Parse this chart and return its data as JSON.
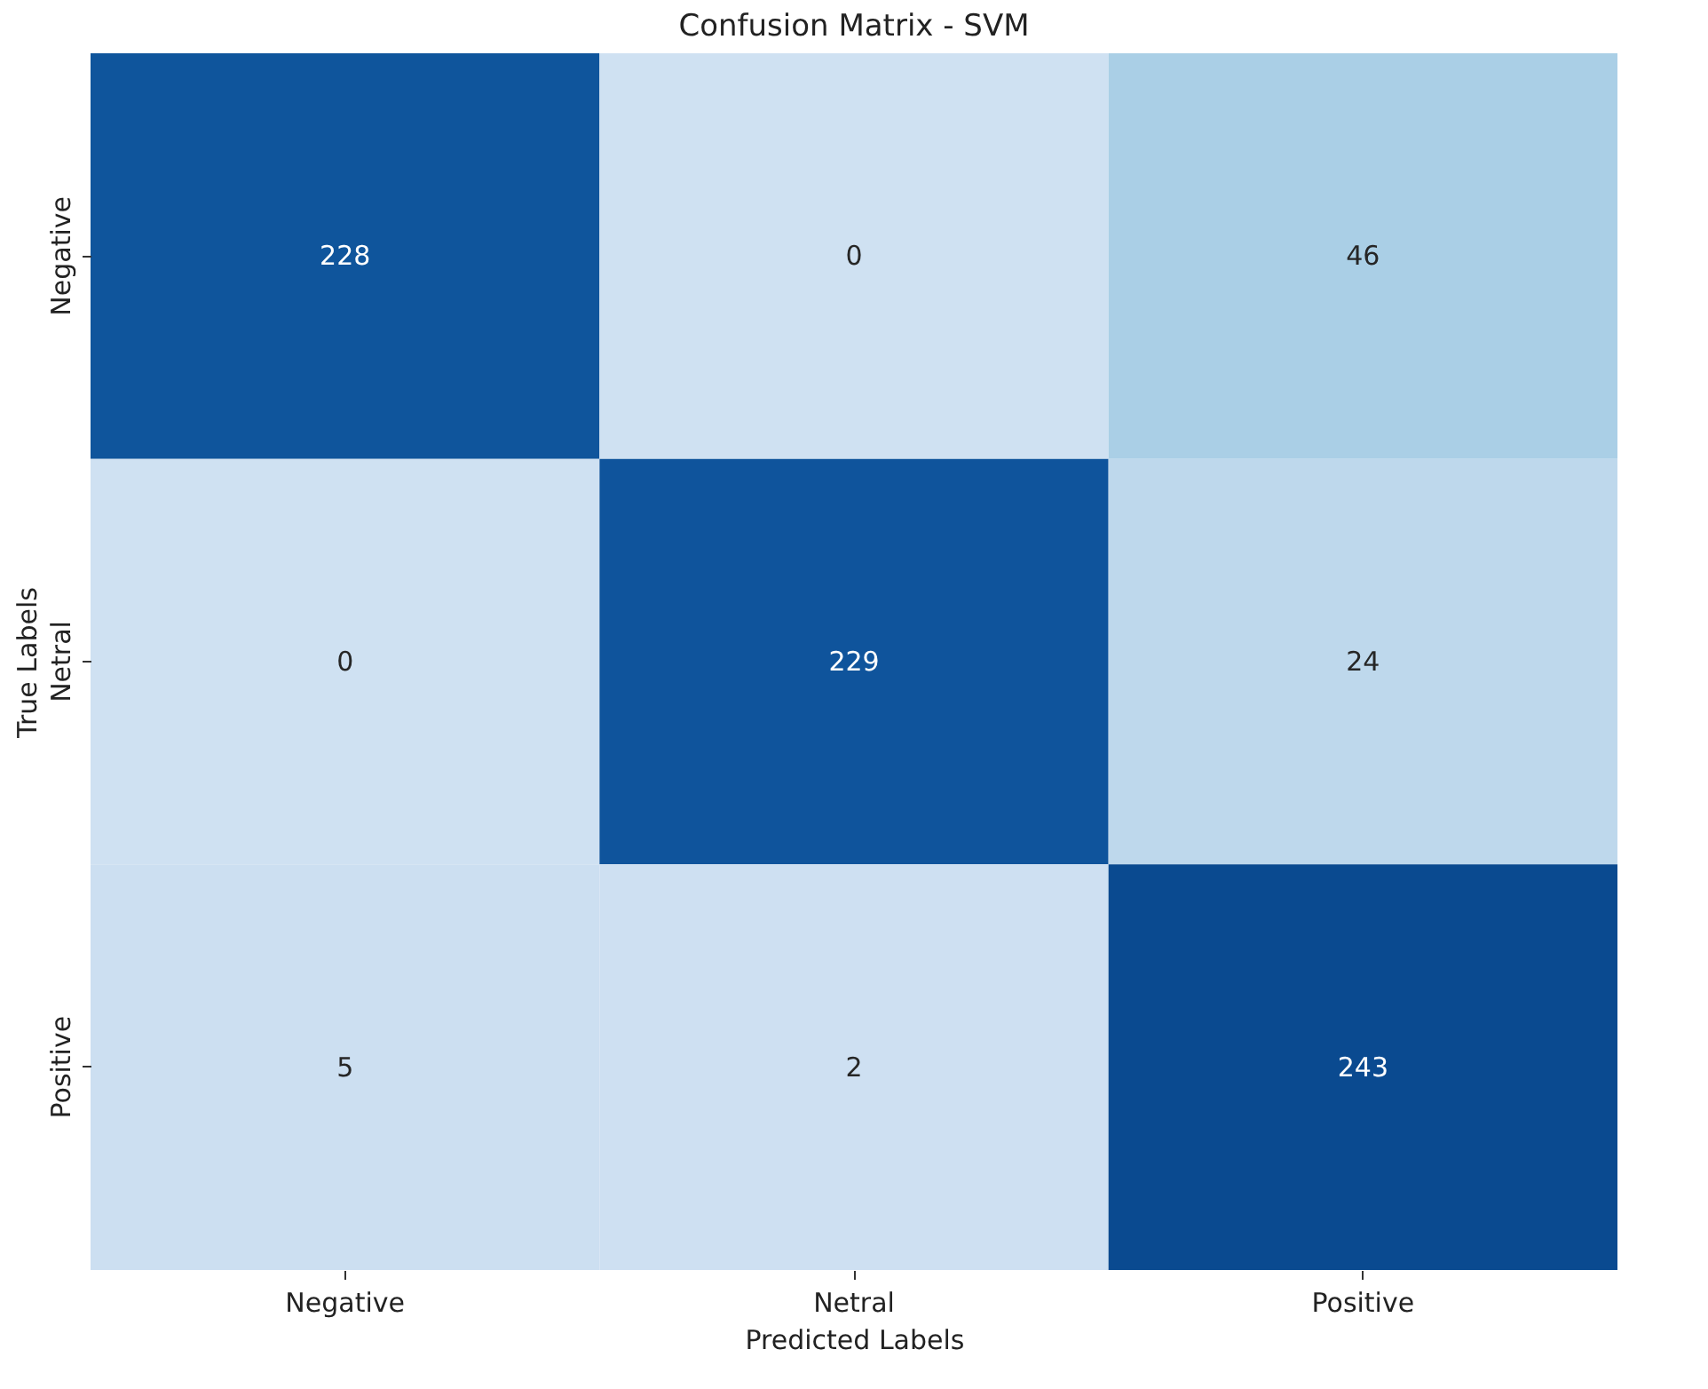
{
  "chart_data": {
    "type": "heatmap",
    "title": "Confusion Matrix - SVM",
    "xlabel": "Predicted Labels",
    "ylabel": "True Labels",
    "categories": [
      "Negative",
      "Netral",
      "Positive"
    ],
    "y_categories": [
      "Negative",
      "Netral",
      "Positive"
    ],
    "cells": [
      [
        228,
        0,
        46
      ],
      [
        0,
        229,
        24
      ],
      [
        5,
        2,
        243
      ]
    ],
    "data_labels": true
  }
}
